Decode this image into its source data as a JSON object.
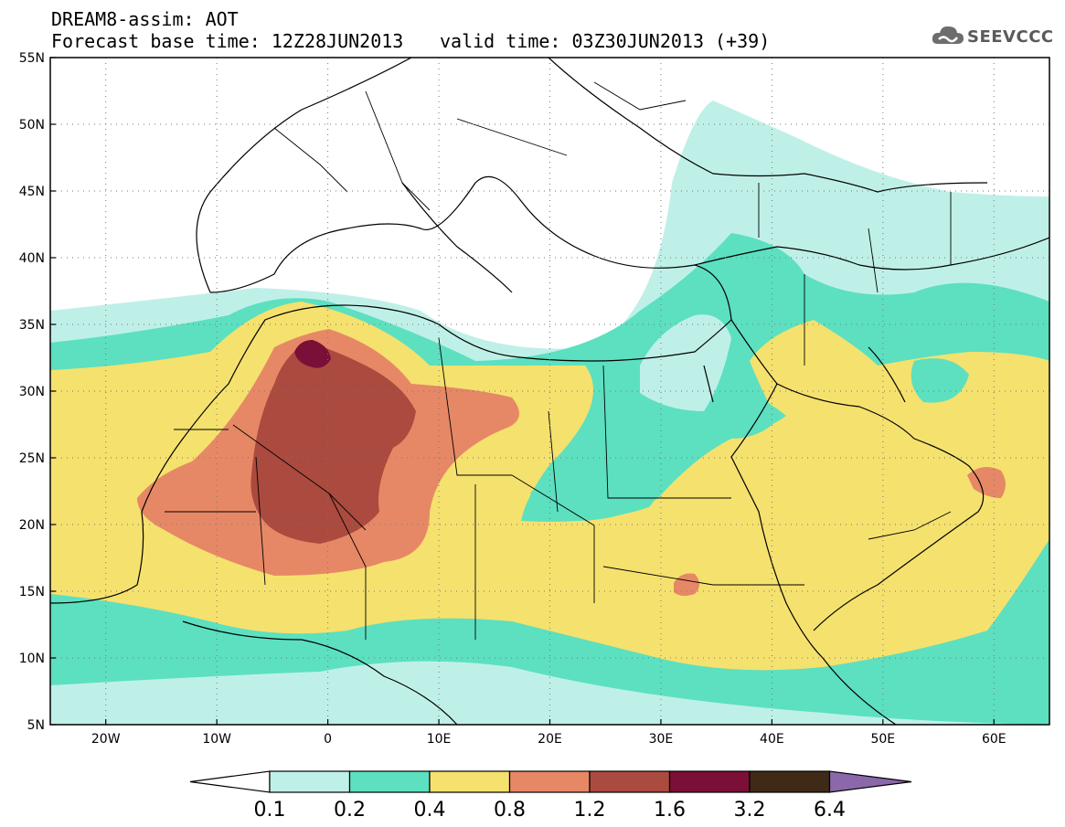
{
  "header": {
    "title_line1": "DREAM8-assim: AOT",
    "title_line2": "Forecast base time: 12Z28JUN2013",
    "valid_time": "valid time: 03Z30JUN2013 (+39)",
    "logo_text": "SEEVCCC",
    "logo_icon": "cloud-icon"
  },
  "map": {
    "lon_range": [
      -25,
      65
    ],
    "lat_range": [
      5,
      55
    ],
    "lat_ticks": [
      "5N",
      "10N",
      "15N",
      "20N",
      "25N",
      "30N",
      "35N",
      "40N",
      "45N",
      "50N",
      "55N"
    ],
    "lon_ticks": [
      "20W",
      "10W",
      "0",
      "10E",
      "20E",
      "30E",
      "40E",
      "50E",
      "60E"
    ],
    "grid": "dotted"
  },
  "legend": {
    "labels": [
      "0.1",
      "0.2",
      "0.4",
      "0.8",
      "1.2",
      "1.6",
      "3.2",
      "6.4"
    ],
    "colors": {
      "below": "#ffffff",
      "c1": "#bff0e8",
      "c2": "#5ce0c0",
      "c3": "#f5e16e",
      "c4": "#e68866",
      "c5": "#ab4a3e",
      "c6": "#7a0f38",
      "c7": "#3f2a18",
      "above": "#8a68aa"
    }
  }
}
